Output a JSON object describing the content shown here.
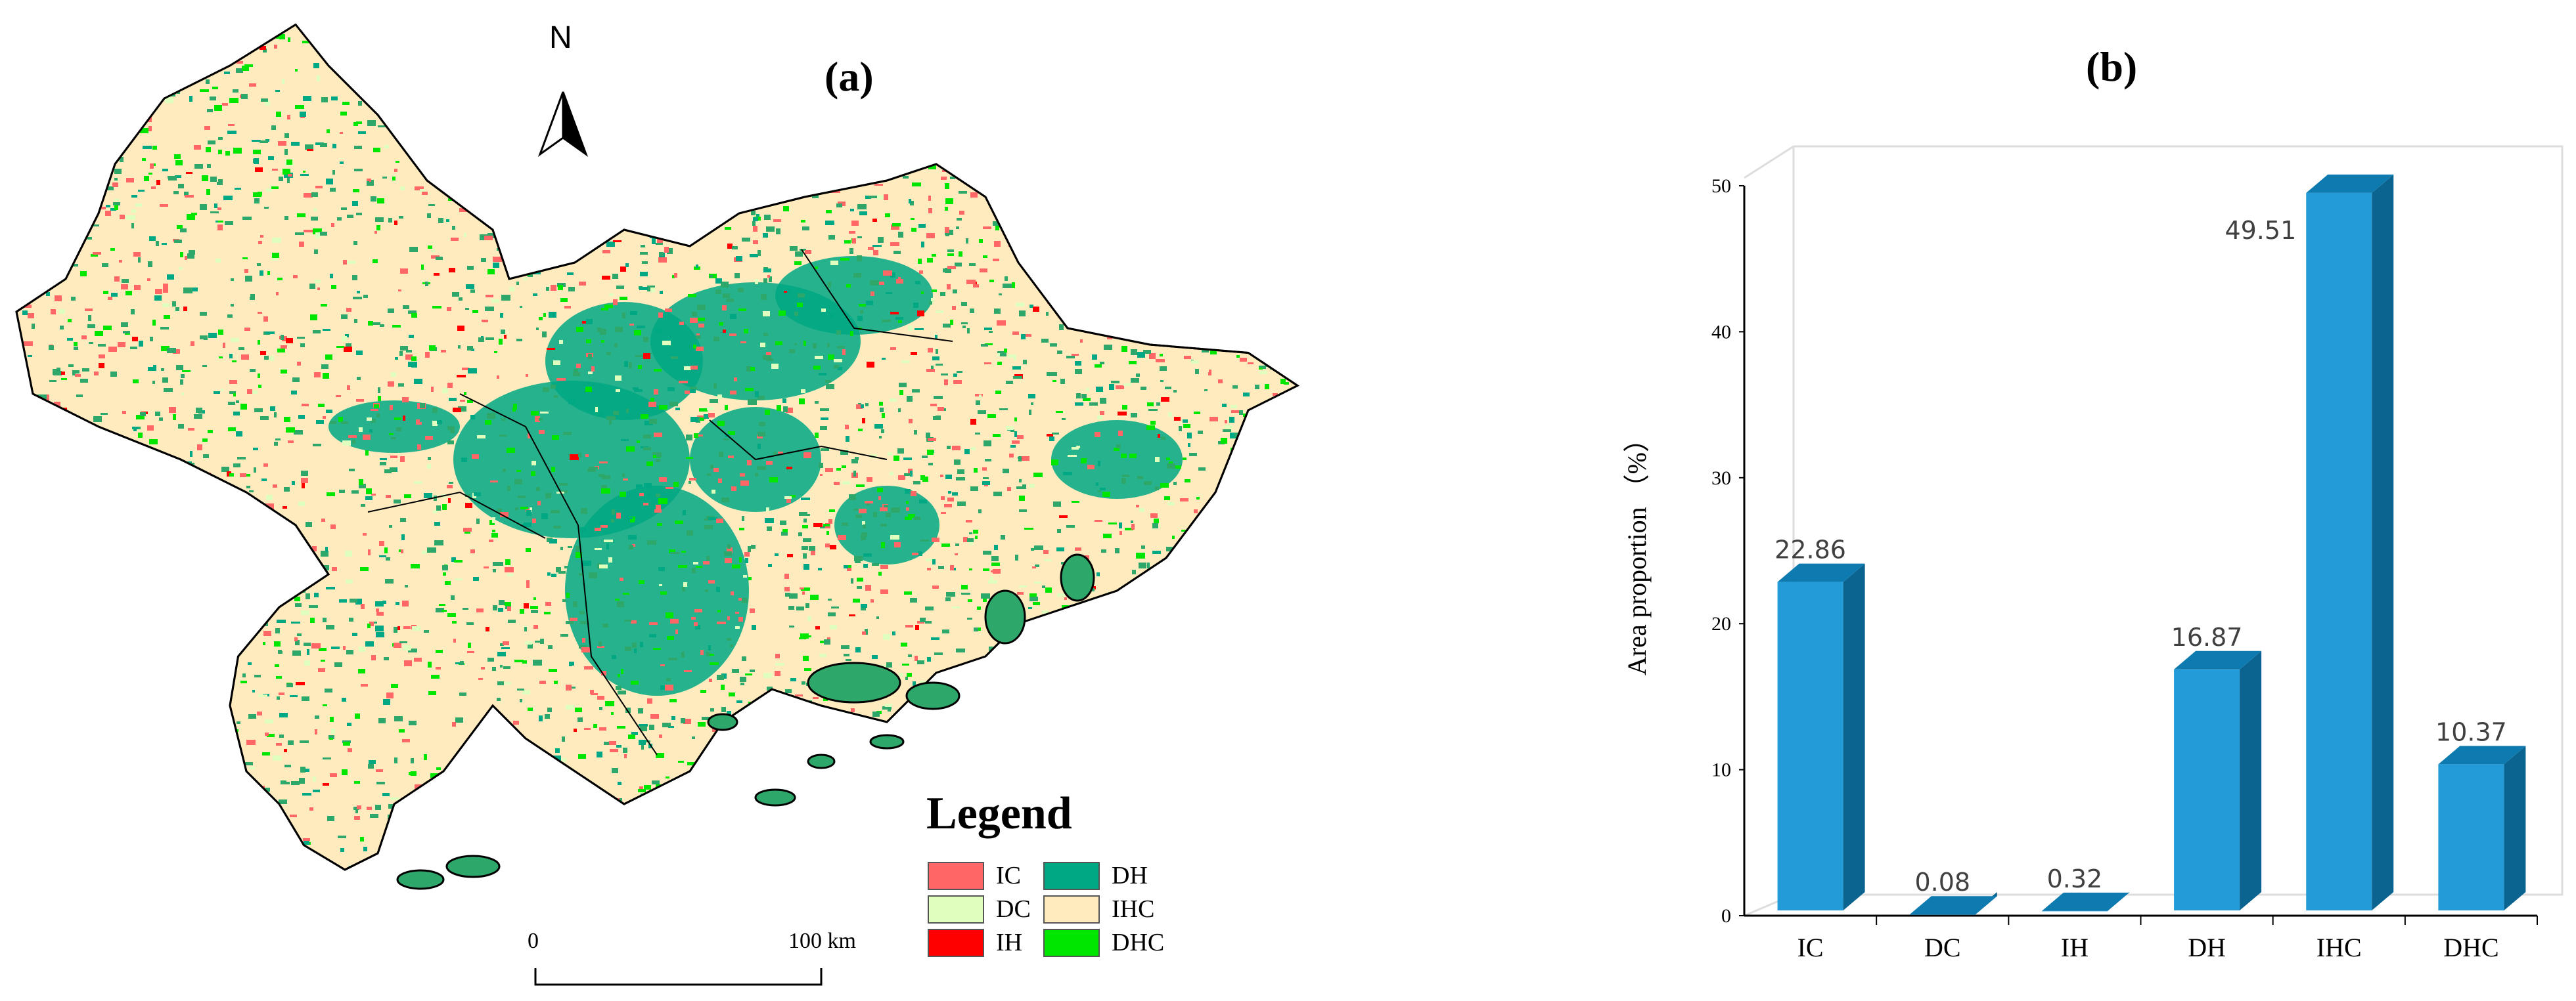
{
  "panel_a": {
    "title": "(a)",
    "north_label": "N",
    "legend": {
      "title": "Legend",
      "items": [
        {
          "label": "IC",
          "color": "#ff6666"
        },
        {
          "label": "DC",
          "color": "#e0ffbf"
        },
        {
          "label": "IH",
          "color": "#ff0000"
        },
        {
          "label": "DH",
          "color": "#00a884"
        },
        {
          "label": "IHC",
          "color": "#ffebbe"
        },
        {
          "label": "DHC",
          "color": "#00e600"
        }
      ]
    },
    "scale_bar": {
      "start": "0",
      "end": "100 km"
    }
  },
  "chart_data": {
    "type": "bar",
    "title": "(b)",
    "categories": [
      "IC",
      "DC",
      "IH",
      "DH",
      "IHC",
      "DHC"
    ],
    "values": [
      22.86,
      0.08,
      0.32,
      16.87,
      49.51,
      10.37
    ],
    "data_labels": [
      "22.86",
      "0.08",
      "0.32",
      "16.87",
      "49.51",
      "10.37"
    ],
    "xlabel": "",
    "ylabel": "Area proportion （%）",
    "ylim": [
      0,
      50
    ],
    "yticks": [
      0,
      10,
      20,
      30,
      40,
      50
    ],
    "grid": false,
    "style": "3d-column",
    "colors": {
      "front": "#229bd8",
      "top": "#0e7bb0",
      "side": "#0b6490"
    }
  }
}
